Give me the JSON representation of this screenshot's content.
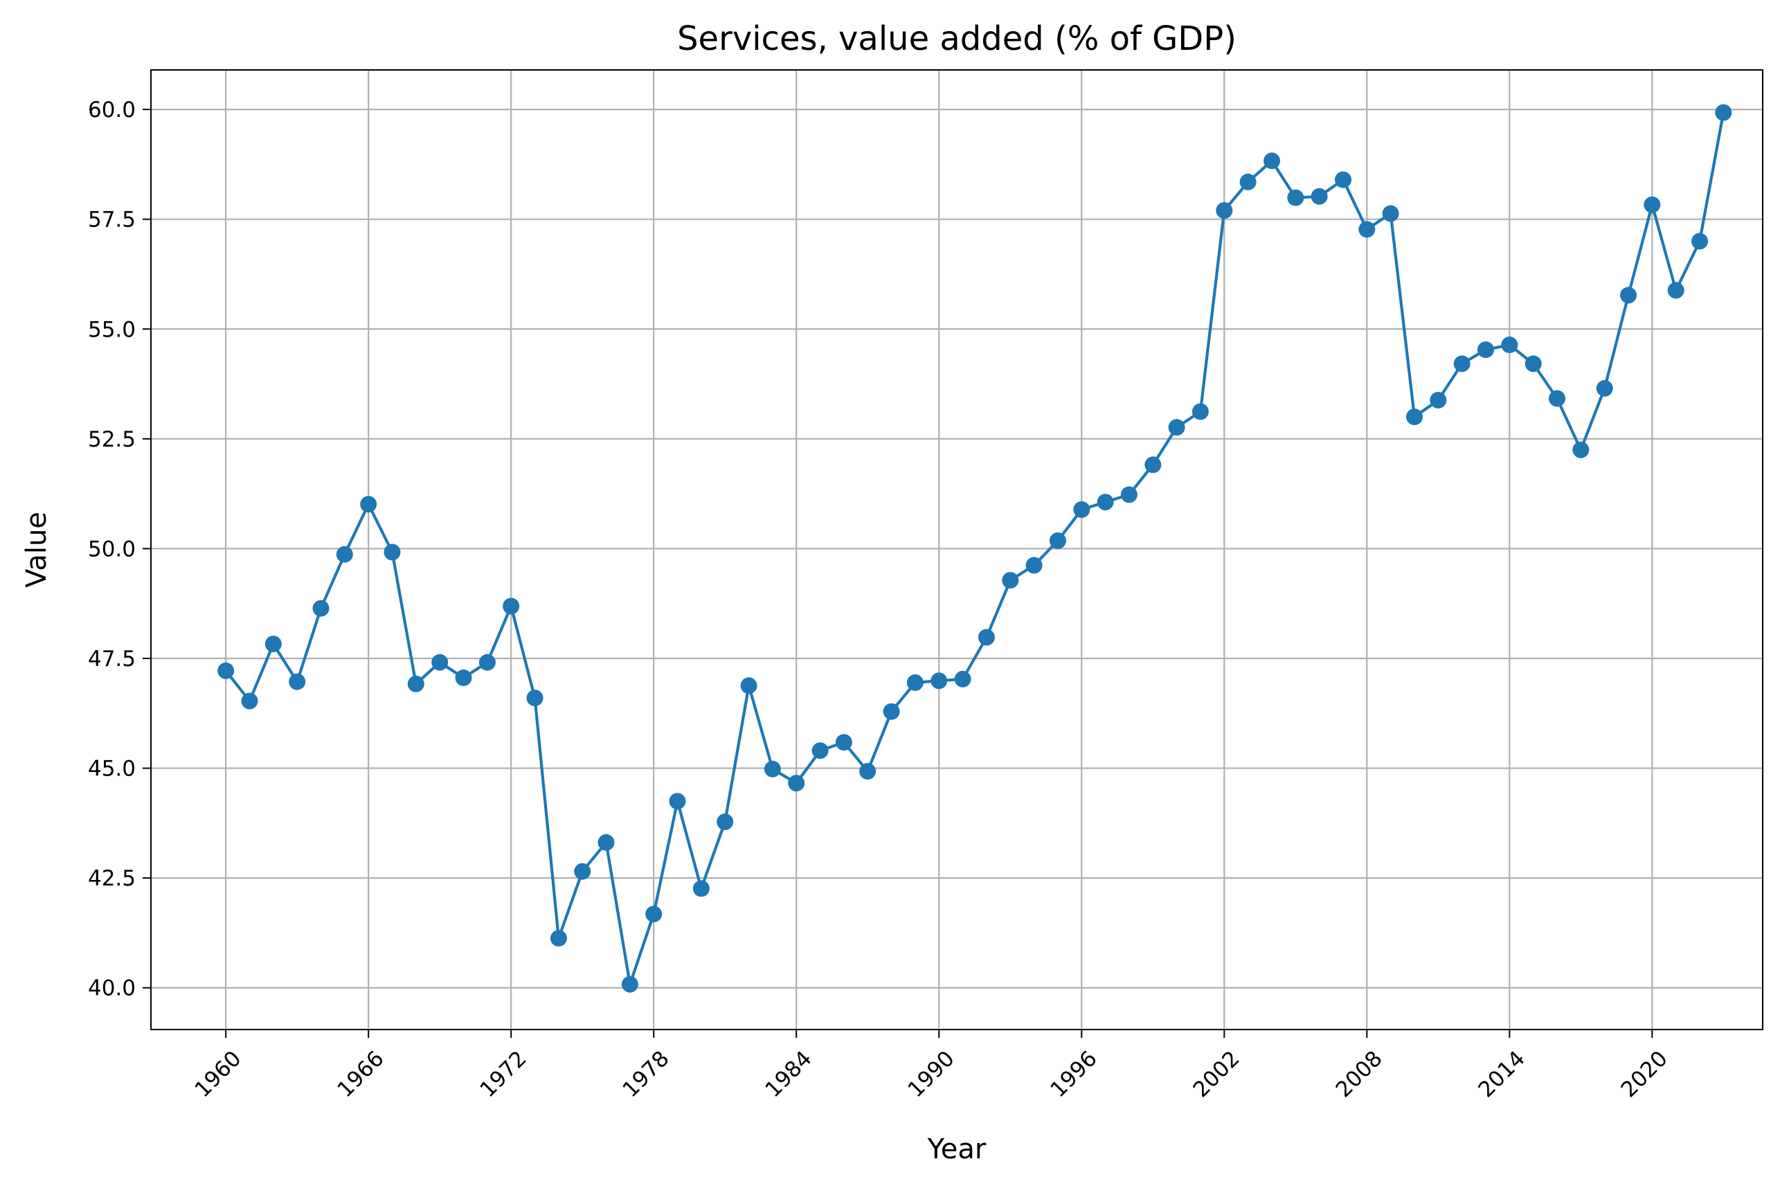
{
  "chart_data": {
    "type": "line",
    "title": "Services, value added (% of GDP)",
    "xlabel": "Year",
    "ylabel": "Value",
    "xlim": [
      1956.85,
      2024.65
    ],
    "ylim": [
      39.05,
      60.9
    ],
    "grid": true,
    "x_ticks": [
      1960,
      1966,
      1972,
      1978,
      1984,
      1990,
      1996,
      2002,
      2008,
      2014,
      2020
    ],
    "y_ticks": [
      40.0,
      42.5,
      45.0,
      47.5,
      50.0,
      52.5,
      55.0,
      57.5,
      60.0
    ],
    "y_tick_labels": [
      "40.0",
      "42.5",
      "45.0",
      "47.5",
      "50.0",
      "52.5",
      "55.0",
      "57.5",
      "60.0"
    ],
    "series": [
      {
        "color": "#1f77b4",
        "marker": "circle",
        "x": [
          1960,
          1961,
          1962,
          1963,
          1964,
          1965,
          1966,
          1967,
          1968,
          1969,
          1970,
          1971,
          1972,
          1973,
          1974,
          1975,
          1976,
          1977,
          1978,
          1979,
          1980,
          1981,
          1982,
          1983,
          1984,
          1985,
          1986,
          1987,
          1988,
          1989,
          1990,
          1991,
          1992,
          1993,
          1994,
          1995,
          1996,
          1997,
          1998,
          1999,
          2000,
          2001,
          2002,
          2003,
          2004,
          2005,
          2006,
          2007,
          2008,
          2009,
          2010,
          2011,
          2012,
          2013,
          2014,
          2015,
          2016,
          2017,
          2018,
          2019,
          2020,
          2021,
          2022,
          2023
        ],
        "y": [
          47.22,
          46.53,
          47.83,
          46.97,
          48.64,
          49.87,
          51.01,
          49.92,
          46.92,
          47.41,
          47.06,
          47.41,
          48.69,
          46.6,
          41.13,
          42.65,
          43.31,
          40.08,
          41.68,
          44.25,
          42.26,
          43.78,
          46.88,
          44.98,
          44.66,
          45.4,
          45.59,
          44.93,
          46.29,
          46.95,
          46.99,
          47.03,
          47.98,
          49.28,
          49.62,
          50.18,
          50.89,
          51.06,
          51.23,
          51.91,
          52.76,
          53.12,
          57.7,
          58.35,
          58.83,
          57.99,
          58.02,
          58.4,
          57.27,
          57.63,
          53.0,
          53.38,
          54.21,
          54.53,
          54.64,
          54.21,
          53.42,
          52.25,
          53.65,
          55.77,
          57.83,
          55.88,
          57.0,
          59.93
        ]
      }
    ]
  }
}
